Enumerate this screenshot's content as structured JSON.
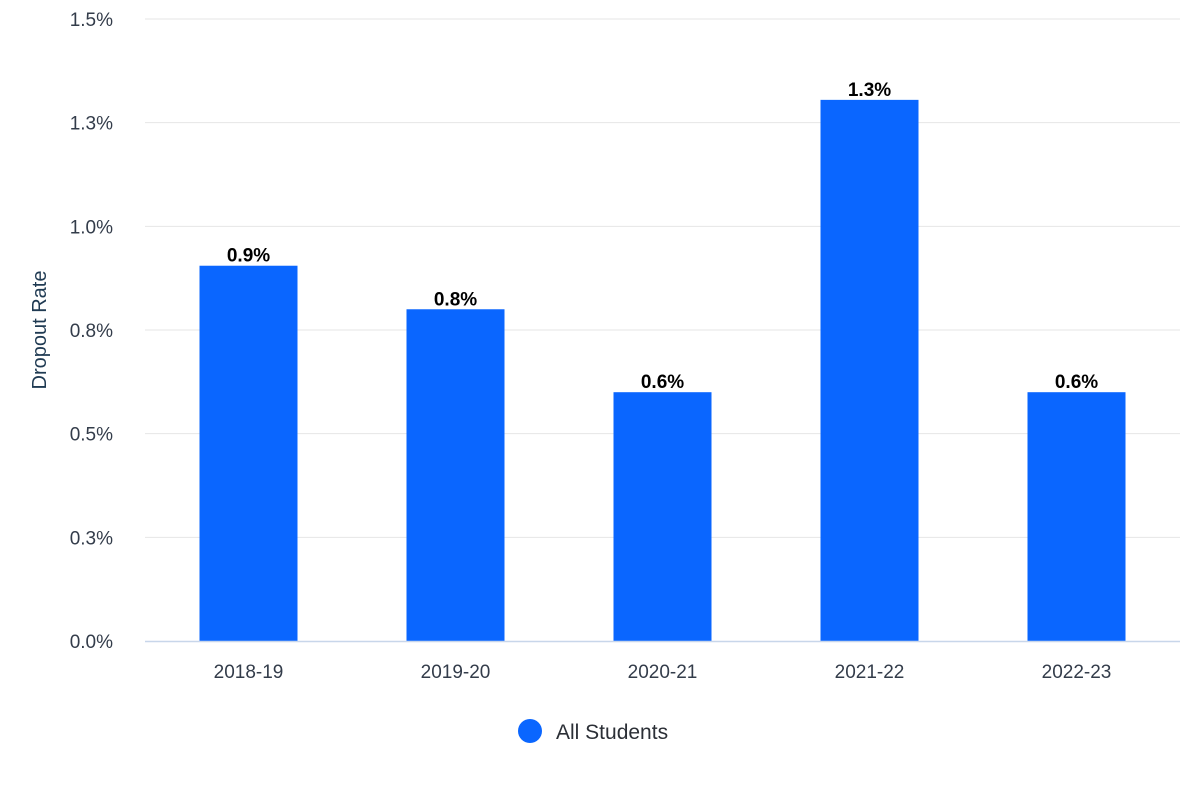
{
  "chart_data": {
    "type": "bar",
    "title": "",
    "xlabel": "",
    "ylabel": "Dropout Rate",
    "categories": [
      "2018-19",
      "2019-20",
      "2020-21",
      "2021-22",
      "2022-23"
    ],
    "series": [
      {
        "name": "All Students",
        "values": [
          0.9,
          0.8,
          0.6,
          1.3,
          0.6
        ],
        "data_labels": [
          "0.9%",
          "0.8%",
          "0.6%",
          "1.3%",
          "0.6%"
        ],
        "color": "#0a66ff"
      }
    ],
    "ylim": [
      0,
      1.5
    ],
    "y_ticks": [
      0,
      0.3,
      0.5,
      0.8,
      1.0,
      1.3,
      1.5
    ],
    "y_tick_labels": [
      "0.0%",
      "0.3%",
      "0.5%",
      "0.8%",
      "1.0%",
      "1.3%",
      "1.5%"
    ],
    "grid": true,
    "legend_position": "bottom-center",
    "gridline_color": "#e6e6e6",
    "axis_line_color": "#c8d6ea"
  }
}
